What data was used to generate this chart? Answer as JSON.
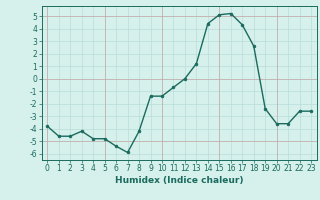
{
  "x": [
    0,
    1,
    2,
    3,
    4,
    5,
    6,
    7,
    8,
    9,
    10,
    11,
    12,
    13,
    14,
    15,
    16,
    17,
    18,
    19,
    20,
    21,
    22,
    23
  ],
  "y": [
    -3.8,
    -4.6,
    -4.6,
    -4.2,
    -4.8,
    -4.8,
    -5.4,
    -5.9,
    -4.2,
    -1.4,
    -1.4,
    -0.7,
    0.0,
    1.2,
    4.4,
    5.1,
    5.2,
    4.3,
    2.6,
    -2.4,
    -3.6,
    -3.6,
    -2.6,
    -2.6
  ],
  "line_color": "#1a6b5e",
  "marker": "o",
  "marker_size": 2.0,
  "linewidth": 1.0,
  "xlabel": "Humidex (Indice chaleur)",
  "xlim": [
    -0.5,
    23.5
  ],
  "ylim": [
    -6.5,
    5.8
  ],
  "yticks": [
    5,
    4,
    3,
    2,
    1,
    0,
    -1,
    -2,
    -3,
    -4,
    -5,
    -6
  ],
  "xticks": [
    0,
    1,
    2,
    3,
    4,
    5,
    6,
    7,
    8,
    9,
    10,
    11,
    12,
    13,
    14,
    15,
    16,
    17,
    18,
    19,
    20,
    21,
    22,
    23
  ],
  "bg_color": "#d6f0ec",
  "grid_minor_color": "#b8ddd8",
  "grid_major_color": "#c8a8a8",
  "tick_fontsize": 5.5,
  "xlabel_fontsize": 6.5
}
